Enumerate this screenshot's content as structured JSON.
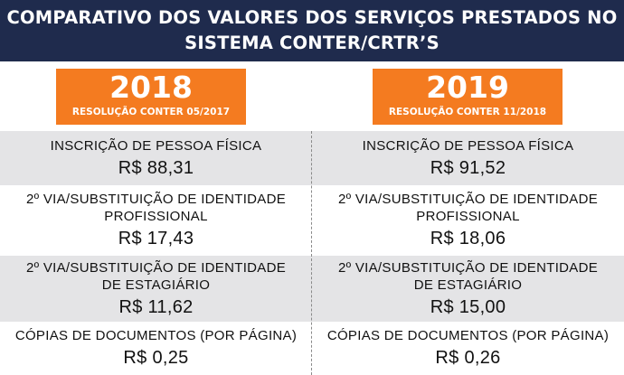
{
  "header": {
    "title_line1": "COMPARATIVO DOS VALORES DOS SERVIÇOS PRESTADOS NO",
    "title_line2": "SISTEMA CONTER/CRTR’S"
  },
  "columns": [
    {
      "year": "2018",
      "resolution": "RESOLUÇÃO CONTER 05/2017"
    },
    {
      "year": "2019",
      "resolution": "RESOLUÇÃO CONTER 11/2018"
    }
  ],
  "services": [
    {
      "label": "INSCRIÇÃO DE PESSOA FÍSICA",
      "price_2018": "R$ 88,31",
      "price_2019": "R$ 91,52"
    },
    {
      "label_line1": "2º VIA/SUBSTITUIÇÃO DE IDENTIDADE",
      "label_line2": "PROFISSIONAL",
      "price_2018": "R$ 17,43",
      "price_2019": "R$ 18,06"
    },
    {
      "label_line1": "2º VIA/SUBSTITUIÇÃO DE IDENTIDADE",
      "label_line2": "DE ESTAGIÁRIO",
      "price_2018": "R$ 11,62",
      "price_2019": "R$ 15,00"
    },
    {
      "label": "CÓPIAS DE DOCUMENTOS (POR PÁGINA)",
      "price_2018": "R$ 0,25",
      "price_2019": "R$ 0,26"
    }
  ],
  "colors": {
    "header_bg": "#1f2b4d",
    "accent_orange": "#f47b20",
    "row_shade": "#e4e4e6"
  }
}
